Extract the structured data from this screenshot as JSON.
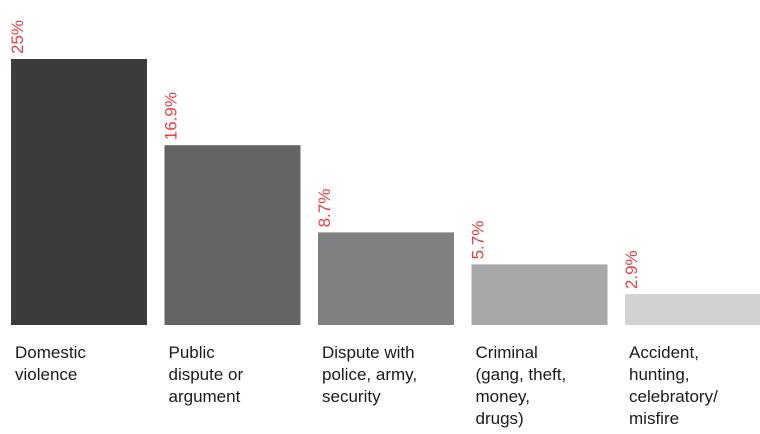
{
  "chart_data": {
    "type": "bar",
    "categories": [
      [
        "Domestic",
        "violence"
      ],
      [
        "Public",
        "dispute or",
        "argument"
      ],
      [
        "Dispute with",
        "police, army,",
        "security"
      ],
      [
        "Criminal",
        "(gang, theft,",
        "money,",
        "drugs)"
      ],
      [
        "Accident,",
        "hunting,",
        "celebratory/",
        "misfire"
      ]
    ],
    "values": [
      25,
      16.9,
      8.7,
      5.7,
      2.9
    ],
    "value_labels": [
      "25%",
      "16.9%",
      "8.7%",
      "5.7%",
      "2.9%"
    ],
    "bar_colors": [
      "#3b3b3d",
      "#636466",
      "#808083",
      "#a7a7a9",
      "#d1d2d3"
    ],
    "label_color": "#e8403f",
    "title": "",
    "xlabel": "",
    "ylabel": "",
    "ylim": [
      0,
      25
    ]
  }
}
